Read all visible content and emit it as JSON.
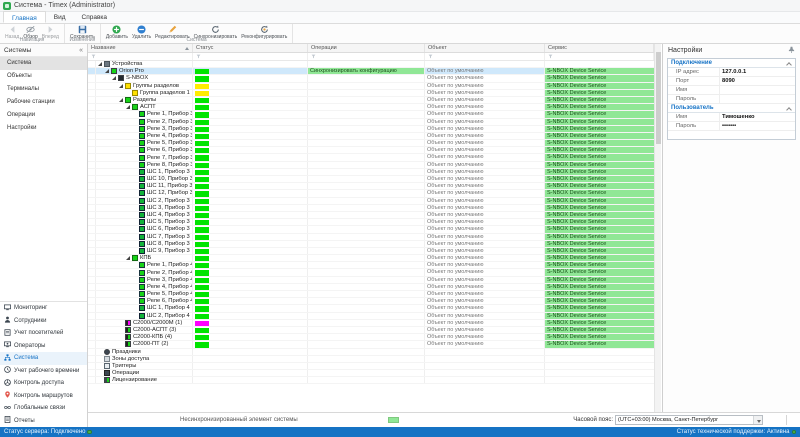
{
  "window": {
    "title": "Система - Timex (Administrator)"
  },
  "colors": {
    "accent": "#1673c6",
    "status_green": "#00e400",
    "status_yellow": "#ffec00",
    "status_magenta": "#ff00ff",
    "cell_green": "#90e796",
    "selection": "#cfe8fb",
    "statusbar": "#1573c4"
  },
  "ribbon": {
    "tabs": [
      {
        "label": "Главная",
        "active": true
      },
      {
        "label": "Вид",
        "active": false
      },
      {
        "label": "Справка",
        "active": false
      }
    ],
    "groups": [
      {
        "label": "Навигация",
        "buttons": [
          {
            "label": "Назад",
            "icon": "back-arrow",
            "disabled": true
          },
          {
            "label": "Обзор",
            "icon": "eye",
            "disabled": false
          },
          {
            "label": "Вперед",
            "icon": "forward-arrow",
            "disabled": true
          }
        ]
      },
      {
        "label": "Изменения",
        "buttons": [
          {
            "label": "Сохранить",
            "icon": "save",
            "disabled": false
          }
        ]
      },
      {
        "label": "Система",
        "buttons": [
          {
            "label": "Добавить",
            "icon": "add-circle",
            "disabled": false
          },
          {
            "label": "Удалить",
            "icon": "remove-circle",
            "disabled": false
          },
          {
            "label": "Редактировать",
            "icon": "pencil",
            "disabled": false
          },
          {
            "label": "Синхронизировать",
            "icon": "sync",
            "disabled": false
          },
          {
            "label": "Реконфигурировать",
            "icon": "reconfigure",
            "disabled": false
          }
        ]
      }
    ]
  },
  "sidebar": {
    "panel_title": "Системы",
    "collapse_glyph": "«",
    "items": [
      "Система",
      "Объекты",
      "Терминалы",
      "Рабочие станции",
      "Операции",
      "Настройки"
    ],
    "selected_item": "Система",
    "nav": [
      {
        "label": "Мониторинг",
        "icon": "monitor-icon",
        "active": false
      },
      {
        "label": "Сотрудники",
        "icon": "person-icon",
        "active": false
      },
      {
        "label": "Учет посетителей",
        "icon": "visitors-icon",
        "active": false
      },
      {
        "label": "Операторы",
        "icon": "operators-icon",
        "active": false
      },
      {
        "label": "Система",
        "icon": "system-icon",
        "active": true
      },
      {
        "label": "Учет рабочего времени",
        "icon": "clock-icon",
        "active": false
      },
      {
        "label": "Контроль доступа",
        "icon": "turnstile-icon",
        "active": false
      },
      {
        "label": "Контроль маршрутов",
        "icon": "map-pin-icon",
        "active": false
      },
      {
        "label": "Глобальные связи",
        "icon": "link-icon",
        "active": false
      },
      {
        "label": "Отчеты",
        "icon": "report-icon",
        "active": false
      }
    ]
  },
  "table": {
    "columns": [
      "Название",
      "Статус",
      "Операции",
      "Объект",
      "Сервис"
    ],
    "sorted_by": "Название",
    "footer_note": "Несинхронизированный элемент системы",
    "rows": [
      {
        "name": "Устройства",
        "level": 0,
        "expanded": true,
        "icon": "devices",
        "status": "",
        "operation": "",
        "object": "",
        "service": "",
        "selected": false
      },
      {
        "name": "Orion Pro",
        "level": 1,
        "expanded": true,
        "icon": "dev-green",
        "status": "green",
        "operation": "Синхронизировать конфигурацию",
        "object": "Объект по умолчанию",
        "service": "S-NBOX Device Service",
        "selected": true
      },
      {
        "name": "S-NBOX",
        "level": 2,
        "expanded": true,
        "icon": "dev-dark",
        "status": "green",
        "operation": "",
        "object": "Объект по умолчанию",
        "service": "S-NBOX Device Service",
        "selected": false
      },
      {
        "name": "Группы разделов",
        "level": 3,
        "expanded": true,
        "icon": "folder-yellow",
        "status": "yellow",
        "operation": "",
        "object": "Объект по умолчанию",
        "service": "S-NBOX Device Service",
        "selected": false
      },
      {
        "name": "Группа разделов 1",
        "level": 4,
        "expanded": false,
        "icon": "item-yellow",
        "status": "yellow",
        "operation": "",
        "object": "Объект по умолчанию",
        "service": "S-NBOX Device Service",
        "selected": false
      },
      {
        "name": "Разделы",
        "level": 3,
        "expanded": true,
        "icon": "folder-green",
        "status": "green",
        "operation": "",
        "object": "Объект по умолчанию",
        "service": "S-NBOX Device Service",
        "selected": false
      },
      {
        "name": "АСПТ",
        "level": 4,
        "expanded": true,
        "icon": "partition-green",
        "status": "green",
        "operation": "",
        "object": "Объект по умолчанию",
        "service": "S-NBOX Device Service",
        "selected": false
      },
      {
        "name": "Реле 1, Прибор 3",
        "level": 5,
        "expanded": false,
        "icon": "relay",
        "status": "green",
        "operation": "",
        "object": "Объект по умолчанию",
        "service": "S-NBOX Device Service",
        "selected": false
      },
      {
        "name": "Реле 2, Прибор 3",
        "level": 5,
        "expanded": false,
        "icon": "relay",
        "status": "green",
        "operation": "",
        "object": "Объект по умолчанию",
        "service": "S-NBOX Device Service",
        "selected": false
      },
      {
        "name": "Реле 3, Прибор 3",
        "level": 5,
        "expanded": false,
        "icon": "relay",
        "status": "green",
        "operation": "",
        "object": "Объект по умолчанию",
        "service": "S-NBOX Device Service",
        "selected": false
      },
      {
        "name": "Реле 4, Прибор 3",
        "level": 5,
        "expanded": false,
        "icon": "relay",
        "status": "green",
        "operation": "",
        "object": "Объект по умолчанию",
        "service": "S-NBOX Device Service",
        "selected": false
      },
      {
        "name": "Реле 5, Прибор 3",
        "level": 5,
        "expanded": false,
        "icon": "relay",
        "status": "green",
        "operation": "",
        "object": "Объект по умолчанию",
        "service": "S-NBOX Device Service",
        "selected": false
      },
      {
        "name": "Реле 6, Прибор 3",
        "level": 5,
        "expanded": false,
        "icon": "relay",
        "status": "green",
        "operation": "",
        "object": "Объект по умолчанию",
        "service": "S-NBOX Device Service",
        "selected": false
      },
      {
        "name": "Реле 7, Прибор 3",
        "level": 5,
        "expanded": false,
        "icon": "relay",
        "status": "green",
        "operation": "",
        "object": "Объект по умолчанию",
        "service": "S-NBOX Device Service",
        "selected": false
      },
      {
        "name": "Реле 8, Прибор 3",
        "level": 5,
        "expanded": false,
        "icon": "relay",
        "status": "green",
        "operation": "",
        "object": "Объект по умолчанию",
        "service": "S-NBOX Device Service",
        "selected": false
      },
      {
        "name": "ШС 1, Прибор 3",
        "level": 5,
        "expanded": false,
        "icon": "shs",
        "status": "green",
        "operation": "",
        "object": "Объект по умолчанию",
        "service": "S-NBOX Device Service",
        "selected": false
      },
      {
        "name": "ШС 10, Прибор 3",
        "level": 5,
        "expanded": false,
        "icon": "shs",
        "status": "green",
        "operation": "",
        "object": "Объект по умолчанию",
        "service": "S-NBOX Device Service",
        "selected": false
      },
      {
        "name": "ШС 11, Прибор 3",
        "level": 5,
        "expanded": false,
        "icon": "shs",
        "status": "green",
        "operation": "",
        "object": "Объект по умолчанию",
        "service": "S-NBOX Device Service",
        "selected": false
      },
      {
        "name": "ШС 12, Прибор 3",
        "level": 5,
        "expanded": false,
        "icon": "shs",
        "status": "green",
        "operation": "",
        "object": "Объект по умолчанию",
        "service": "S-NBOX Device Service",
        "selected": false
      },
      {
        "name": "ШС 2, Прибор 3",
        "level": 5,
        "expanded": false,
        "icon": "shs",
        "status": "green",
        "operation": "",
        "object": "Объект по умолчанию",
        "service": "S-NBOX Device Service",
        "selected": false
      },
      {
        "name": "ШС 3, Прибор 3",
        "level": 5,
        "expanded": false,
        "icon": "shs",
        "status": "green",
        "operation": "",
        "object": "Объект по умолчанию",
        "service": "S-NBOX Device Service",
        "selected": false
      },
      {
        "name": "ШС 4, Прибор 3",
        "level": 5,
        "expanded": false,
        "icon": "shs",
        "status": "green",
        "operation": "",
        "object": "Объект по умолчанию",
        "service": "S-NBOX Device Service",
        "selected": false
      },
      {
        "name": "ШС 5, Прибор 3",
        "level": 5,
        "expanded": false,
        "icon": "shs",
        "status": "green",
        "operation": "",
        "object": "Объект по умолчанию",
        "service": "S-NBOX Device Service",
        "selected": false
      },
      {
        "name": "ШС 6, Прибор 3",
        "level": 5,
        "expanded": false,
        "icon": "shs",
        "status": "green",
        "operation": "",
        "object": "Объект по умолчанию",
        "service": "S-NBOX Device Service",
        "selected": false
      },
      {
        "name": "ШС 7, Прибор 3",
        "level": 5,
        "expanded": false,
        "icon": "shs",
        "status": "green",
        "operation": "",
        "object": "Объект по умолчанию",
        "service": "S-NBOX Device Service",
        "selected": false
      },
      {
        "name": "ШС 8, Прибор 3",
        "level": 5,
        "expanded": false,
        "icon": "shs",
        "status": "green",
        "operation": "",
        "object": "Объект по умолчанию",
        "service": "S-NBOX Device Service",
        "selected": false
      },
      {
        "name": "ШС 9, Прибор 3",
        "level": 5,
        "expanded": false,
        "icon": "shs",
        "status": "green",
        "operation": "",
        "object": "Объект по умолчанию",
        "service": "S-NBOX Device Service",
        "selected": false
      },
      {
        "name": "КПБ",
        "level": 4,
        "expanded": true,
        "icon": "partition-green",
        "status": "green",
        "operation": "",
        "object": "Объект по умолчанию",
        "service": "S-NBOX Device Service",
        "selected": false
      },
      {
        "name": "Реле 1, Прибор 4",
        "level": 5,
        "expanded": false,
        "icon": "relay",
        "status": "green",
        "operation": "",
        "object": "Объект по умолчанию",
        "service": "S-NBOX Device Service",
        "selected": false
      },
      {
        "name": "Реле 2, Прибор 4",
        "level": 5,
        "expanded": false,
        "icon": "relay",
        "status": "green",
        "operation": "",
        "object": "Объект по умолчанию",
        "service": "S-NBOX Device Service",
        "selected": false
      },
      {
        "name": "Реле 3, Прибор 4",
        "level": 5,
        "expanded": false,
        "icon": "relay",
        "status": "green",
        "operation": "",
        "object": "Объект по умолчанию",
        "service": "S-NBOX Device Service",
        "selected": false
      },
      {
        "name": "Реле 4, Прибор 4",
        "level": 5,
        "expanded": false,
        "icon": "relay",
        "status": "green",
        "operation": "",
        "object": "Объект по умолчанию",
        "service": "S-NBOX Device Service",
        "selected": false
      },
      {
        "name": "Реле 5, Прибор 4",
        "level": 5,
        "expanded": false,
        "icon": "relay",
        "status": "green",
        "operation": "",
        "object": "Объект по умолчанию",
        "service": "S-NBOX Device Service",
        "selected": false
      },
      {
        "name": "Реле 6, Прибор 4",
        "level": 5,
        "expanded": false,
        "icon": "relay",
        "status": "green",
        "operation": "",
        "object": "Объект по умолчанию",
        "service": "S-NBOX Device Service",
        "selected": false
      },
      {
        "name": "ШС 1, Прибор 4",
        "level": 5,
        "expanded": false,
        "icon": "shs",
        "status": "green",
        "operation": "",
        "object": "Объект по умолчанию",
        "service": "S-NBOX Device Service",
        "selected": false
      },
      {
        "name": "ШС 2, Прибор 4",
        "level": 5,
        "expanded": false,
        "icon": "shs",
        "status": "green",
        "operation": "",
        "object": "Объект по умолчанию",
        "service": "S-NBOX Device Service",
        "selected": false
      },
      {
        "name": "С2000/С2000М (1)",
        "level": 3,
        "expanded": false,
        "icon": "c2000-magenta",
        "status": "magenta",
        "operation": "",
        "object": "Объект по умолчанию",
        "service": "S-NBOX Device Service",
        "selected": false
      },
      {
        "name": "С2000-АСПТ (3)",
        "level": 3,
        "expanded": false,
        "icon": "c2000-green",
        "status": "green",
        "operation": "",
        "object": "Объект по умолчанию",
        "service": "S-NBOX Device Service",
        "selected": false
      },
      {
        "name": "С2000-КПБ (4)",
        "level": 3,
        "expanded": false,
        "icon": "c2000-green",
        "status": "green",
        "operation": "",
        "object": "Объект по умолчанию",
        "service": "S-NBOX Device Service",
        "selected": false
      },
      {
        "name": "С2000-ПТ (2)",
        "level": 3,
        "expanded": false,
        "icon": "c2000-green",
        "status": "green",
        "operation": "",
        "object": "Объект по умолчанию",
        "service": "S-NBOX Device Service",
        "selected": false
      },
      {
        "name": "Праздники",
        "level": 0,
        "expanded": false,
        "icon": "holidays",
        "status": "",
        "operation": "",
        "object": "",
        "service": "",
        "selected": false
      },
      {
        "name": "Зоны доступа",
        "level": 0,
        "expanded": false,
        "icon": "zones",
        "status": "",
        "operation": "",
        "object": "",
        "service": "",
        "selected": false
      },
      {
        "name": "Триггеры",
        "level": 0,
        "expanded": false,
        "icon": "triggers",
        "status": "",
        "operation": "",
        "object": "",
        "service": "",
        "selected": false
      },
      {
        "name": "Операции",
        "level": 0,
        "expanded": false,
        "icon": "operations",
        "status": "",
        "operation": "",
        "object": "",
        "service": "",
        "selected": false
      },
      {
        "name": "Лицензирование",
        "level": 0,
        "expanded": false,
        "icon": "licensing",
        "status": "",
        "operation": "",
        "object": "",
        "service": "",
        "selected": false
      }
    ]
  },
  "settings": {
    "title": "Настройки",
    "sections": [
      {
        "title": "Подключение",
        "fields": [
          {
            "label": "IP адрес",
            "value": "127.0.0.1"
          },
          {
            "label": "Порт",
            "value": "8090"
          },
          {
            "label": "Имя",
            "value": ""
          },
          {
            "label": "Пароль",
            "value": ""
          }
        ]
      },
      {
        "title": "Пользователь",
        "fields": [
          {
            "label": "Имя",
            "value": "Тимошенко"
          },
          {
            "label": "Пароль",
            "value": "•••••••"
          }
        ]
      }
    ],
    "timezone_label": "Часовой пояс:",
    "timezone_value": "(UTC+03:00) Москва, Санкт-Петербург"
  },
  "statusbar": {
    "left": "Статус сервера: Подключено",
    "right": "Статус технической поддержки: Активна"
  }
}
